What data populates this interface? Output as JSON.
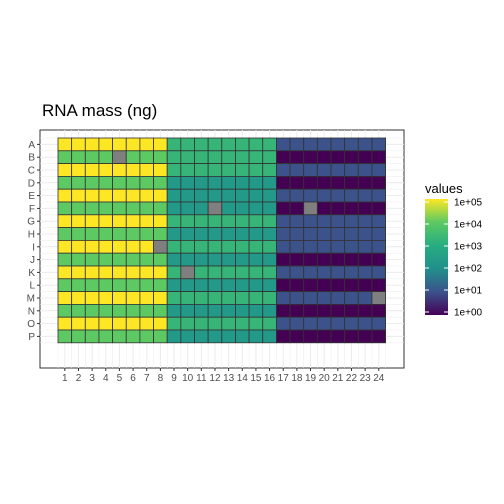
{
  "chart_data": {
    "type": "heatmap",
    "title": "RNA mass (ng)",
    "xlabel": "",
    "ylabel": "",
    "x_categories": [
      "1",
      "2",
      "3",
      "4",
      "5",
      "6",
      "7",
      "8",
      "9",
      "10",
      "11",
      "12",
      "13",
      "14",
      "15",
      "16",
      "17",
      "18",
      "19",
      "20",
      "21",
      "22",
      "23",
      "24"
    ],
    "y_categories": [
      "A",
      "B",
      "C",
      "D",
      "E",
      "F",
      "G",
      "H",
      "I",
      "J",
      "K",
      "L",
      "M",
      "N",
      "O",
      "P"
    ],
    "color_scale": "viridis",
    "log_scale": true,
    "legend_title": "values",
    "legend_placement": "right",
    "legend_ticks": [
      "1e+00",
      "1e+01",
      "1e+02",
      "1e+03",
      "1e+04",
      "1e+05"
    ],
    "legend_tick_values": [
      1,
      10,
      100,
      1000,
      10000,
      100000
    ],
    "value_range": [
      1,
      100000
    ],
    "na_color": "#7f7f7f",
    "grid": true,
    "values": [
      [
        100000,
        100000,
        100000,
        100000,
        100000,
        100000,
        100000,
        100000,
        2000,
        2000,
        2000,
        2000,
        2000,
        2000,
        2000,
        2000,
        10,
        10,
        10,
        10,
        10,
        10,
        10,
        10
      ],
      [
        10000,
        10000,
        10000,
        10000,
        null,
        10000,
        10000,
        10000,
        2000,
        2000,
        2000,
        2000,
        2000,
        2000,
        2000,
        2000,
        1,
        1,
        1,
        1,
        1,
        1,
        1,
        1
      ],
      [
        100000,
        100000,
        100000,
        100000,
        100000,
        100000,
        100000,
        100000,
        2000,
        2000,
        2000,
        2000,
        2000,
        2000,
        2000,
        2000,
        10,
        10,
        10,
        10,
        10,
        10,
        10,
        10
      ],
      [
        10000,
        10000,
        10000,
        10000,
        10000,
        10000,
        10000,
        10000,
        200,
        200,
        200,
        200,
        200,
        200,
        200,
        200,
        1,
        1,
        1,
        1,
        1,
        1,
        1,
        1
      ],
      [
        100000,
        100000,
        100000,
        100000,
        100000,
        100000,
        100000,
        100000,
        200,
        200,
        200,
        200,
        200,
        200,
        200,
        200,
        10,
        10,
        10,
        10,
        10,
        10,
        10,
        10
      ],
      [
        10000,
        10000,
        10000,
        10000,
        10000,
        10000,
        10000,
        10000,
        200,
        200,
        200,
        null,
        200,
        200,
        200,
        200,
        1,
        1,
        null,
        1,
        1,
        1,
        1,
        1
      ],
      [
        100000,
        100000,
        100000,
        100000,
        100000,
        100000,
        100000,
        100000,
        2000,
        2000,
        2000,
        2000,
        2000,
        2000,
        2000,
        2000,
        10,
        10,
        10,
        10,
        10,
        10,
        10,
        10
      ],
      [
        10000,
        10000,
        10000,
        10000,
        10000,
        10000,
        10000,
        10000,
        200,
        200,
        200,
        200,
        200,
        200,
        200,
        200,
        10,
        10,
        10,
        10,
        10,
        10,
        10,
        10
      ],
      [
        100000,
        100000,
        100000,
        100000,
        100000,
        100000,
        100000,
        null,
        2000,
        2000,
        2000,
        2000,
        2000,
        2000,
        2000,
        2000,
        10,
        10,
        10,
        10,
        10,
        10,
        10,
        10
      ],
      [
        10000,
        10000,
        10000,
        10000,
        10000,
        10000,
        10000,
        10000,
        200,
        200,
        200,
        200,
        200,
        200,
        200,
        200,
        1,
        1,
        1,
        1,
        1,
        1,
        1,
        1
      ],
      [
        100000,
        100000,
        100000,
        100000,
        100000,
        100000,
        100000,
        100000,
        2000,
        null,
        2000,
        2000,
        2000,
        2000,
        2000,
        2000,
        10,
        10,
        10,
        10,
        10,
        10,
        10,
        10
      ],
      [
        10000,
        10000,
        10000,
        10000,
        10000,
        10000,
        10000,
        10000,
        200,
        200,
        200,
        200,
        200,
        200,
        200,
        200,
        1,
        1,
        1,
        1,
        1,
        1,
        1,
        1
      ],
      [
        100000,
        100000,
        100000,
        100000,
        100000,
        100000,
        100000,
        100000,
        2000,
        2000,
        2000,
        2000,
        2000,
        2000,
        2000,
        2000,
        10,
        10,
        10,
        10,
        10,
        10,
        10,
        null
      ],
      [
        10000,
        10000,
        10000,
        10000,
        10000,
        10000,
        10000,
        10000,
        200,
        200,
        200,
        200,
        200,
        200,
        200,
        200,
        1,
        1,
        1,
        1,
        1,
        1,
        1,
        1
      ],
      [
        100000,
        100000,
        100000,
        100000,
        100000,
        100000,
        100000,
        100000,
        2000,
        2000,
        2000,
        2000,
        2000,
        2000,
        2000,
        2000,
        10,
        10,
        10,
        10,
        10,
        10,
        10,
        10
      ],
      [
        10000,
        10000,
        10000,
        10000,
        10000,
        10000,
        10000,
        10000,
        200,
        200,
        200,
        200,
        200,
        200,
        200,
        200,
        1,
        1,
        1,
        1,
        1,
        1,
        1,
        1
      ]
    ]
  }
}
